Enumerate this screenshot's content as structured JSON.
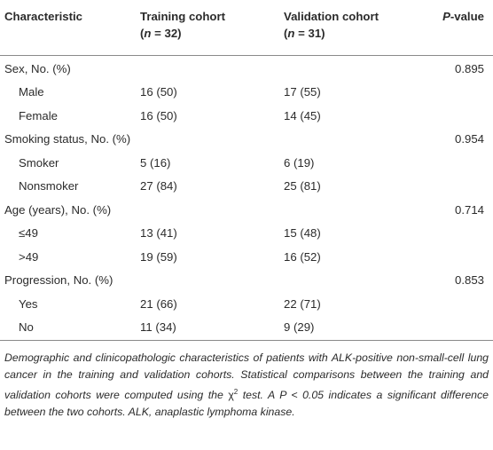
{
  "header": {
    "characteristic": "Characteristic",
    "training_title": "Training cohort",
    "training_n_open": "(",
    "training_n_sym": "n",
    "training_n_val": " = 32)",
    "validation_title": "Validation cohort",
    "validation_n_open": "(",
    "validation_n_sym": "n",
    "validation_n_val": " = 31)",
    "pvalue_p": "P",
    "pvalue_rest": "-value"
  },
  "rows": [
    {
      "label": "Sex, No. (%)",
      "training": "",
      "validation": "",
      "p": "0.895"
    },
    {
      "label": "Male",
      "training": "16 (50)",
      "validation": "17 (55)",
      "p": ""
    },
    {
      "label": "Female",
      "training": "16 (50)",
      "validation": "14 (45)",
      "p": ""
    },
    {
      "label": "Smoking status, No. (%)",
      "training": "",
      "validation": "",
      "p": "0.954"
    },
    {
      "label": "Smoker",
      "training": "5 (16)",
      "validation": "6 (19)",
      "p": ""
    },
    {
      "label": "Nonsmoker",
      "training": "27 (84)",
      "validation": "25 (81)",
      "p": ""
    },
    {
      "label": "Age (years), No. (%)",
      "training": "",
      "validation": "",
      "p": "0.714"
    },
    {
      "label": "≤49",
      "training": "13 (41)",
      "validation": "15 (48)",
      "p": ""
    },
    {
      "label": ">49",
      "training": "19 (59)",
      "validation": "16 (52)",
      "p": ""
    },
    {
      "label": "Progression, No. (%)",
      "training": "",
      "validation": "",
      "p": "0.853"
    },
    {
      "label": "Yes",
      "training": "21 (66)",
      "validation": "22 (71)",
      "p": ""
    },
    {
      "label": "No",
      "training": "11 (34)",
      "validation": "9 (29)",
      "p": ""
    }
  ],
  "footnote": {
    "part1": "Demographic and clinicopathologic characteristics of patients with ALK-positive non-small-cell lung cancer in the training and validation cohorts. Statistical comparisons between the training and validation cohorts were computed using the ",
    "chi": "χ",
    "sup": "2",
    "part2": " test. A P < 0.05 indicates a significant difference between the two cohorts. ALK, anaplastic lymphoma kinase."
  }
}
